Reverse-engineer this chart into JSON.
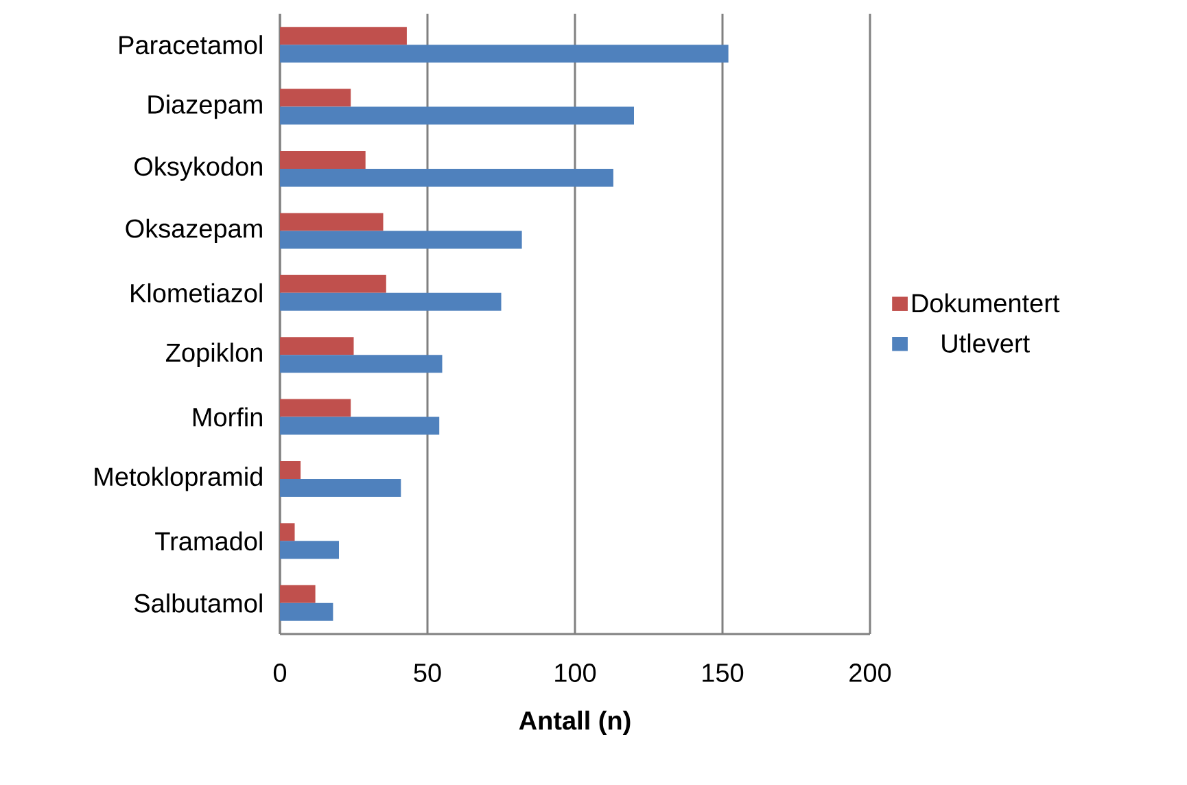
{
  "chart_data": {
    "type": "bar",
    "orientation": "horizontal",
    "xlabel": "Antall (n)",
    "categories": [
      "Paracetamol",
      "Diazepam",
      "Oksykodon",
      "Oksazepam",
      "Klometiazol",
      "Zopiklon",
      "Morfin",
      "Metoklopramid",
      "Tramadol",
      "Salbutamol"
    ],
    "series": [
      {
        "name": "Dokumentert",
        "color": "#c0504d",
        "values": [
          43,
          24,
          29,
          35,
          36,
          25,
          24,
          7,
          5,
          12
        ]
      },
      {
        "name": "Utlevert",
        "color": "#4f81bd",
        "values": [
          152,
          120,
          113,
          82,
          75,
          55,
          54,
          41,
          20,
          18
        ]
      }
    ],
    "xlim": [
      0,
      200
    ],
    "xticks": [
      0,
      50,
      100,
      150,
      200
    ],
    "grid": "x",
    "legend": "right"
  }
}
